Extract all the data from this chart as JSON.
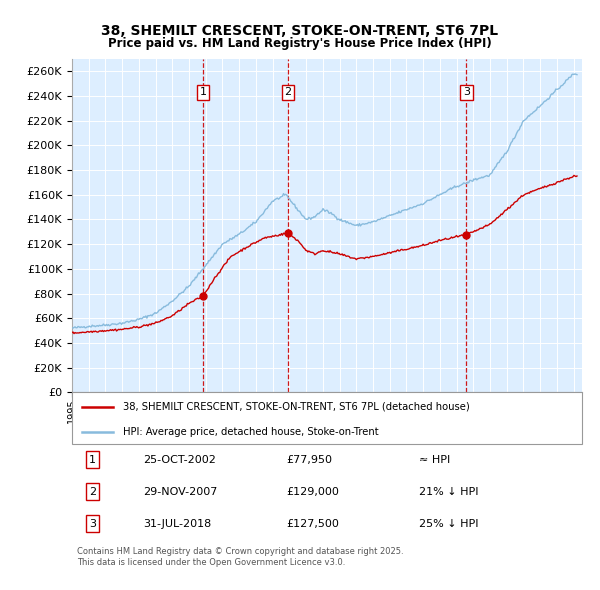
{
  "title": "38, SHEMILT CRESCENT, STOKE-ON-TRENT, ST6 7PL",
  "subtitle": "Price paid vs. HM Land Registry's House Price Index (HPI)",
  "legend_property": "38, SHEMILT CRESCENT, STOKE-ON-TRENT, ST6 7PL (detached house)",
  "legend_hpi": "HPI: Average price, detached house, Stoke-on-Trent",
  "property_color": "#cc0000",
  "hpi_color": "#88bbdd",
  "vline_color": "#cc0000",
  "plot_bg": "#ddeeff",
  "ylim": [
    0,
    270000
  ],
  "yticks": [
    0,
    20000,
    40000,
    60000,
    80000,
    100000,
    120000,
    140000,
    160000,
    180000,
    200000,
    220000,
    240000,
    260000
  ],
  "xmin": 1995,
  "xmax": 2025.5,
  "sale_years": [
    2002.8333,
    2007.9167,
    2018.5833
  ],
  "sale_prices": [
    77950,
    129000,
    127500
  ],
  "sale_nums": [
    "1",
    "2",
    "3"
  ],
  "table_rows": [
    [
      "1",
      "25-OCT-2002",
      "£77,950",
      "≈ HPI"
    ],
    [
      "2",
      "29-NOV-2007",
      "£129,000",
      "21% ↓ HPI"
    ],
    [
      "3",
      "31-JUL-2018",
      "£127,500",
      "25% ↓ HPI"
    ]
  ],
  "footer": "Contains HM Land Registry data © Crown copyright and database right 2025.\nThis data is licensed under the Open Government Licence v3.0.",
  "hpi_key_points": [
    [
      1995.0,
      52000
    ],
    [
      1996.0,
      53500
    ],
    [
      1997.0,
      54500
    ],
    [
      1998.0,
      56000
    ],
    [
      1999.0,
      59000
    ],
    [
      2000.0,
      64000
    ],
    [
      2001.0,
      74000
    ],
    [
      2002.0,
      86000
    ],
    [
      2003.0,
      103000
    ],
    [
      2004.0,
      120000
    ],
    [
      2005.0,
      128000
    ],
    [
      2006.0,
      138000
    ],
    [
      2007.0,
      155000
    ],
    [
      2007.8,
      160000
    ],
    [
      2008.5,
      148000
    ],
    [
      2009.0,
      140000
    ],
    [
      2009.5,
      142000
    ],
    [
      2010.0,
      148000
    ],
    [
      2010.5,
      145000
    ],
    [
      2011.0,
      140000
    ],
    [
      2012.0,
      135000
    ],
    [
      2013.0,
      138000
    ],
    [
      2014.0,
      143000
    ],
    [
      2015.0,
      148000
    ],
    [
      2016.0,
      153000
    ],
    [
      2017.0,
      160000
    ],
    [
      2018.0,
      167000
    ],
    [
      2018.5,
      169000
    ],
    [
      2019.0,
      172000
    ],
    [
      2019.5,
      174000
    ],
    [
      2020.0,
      176000
    ],
    [
      2021.0,
      195000
    ],
    [
      2022.0,
      220000
    ],
    [
      2023.0,
      232000
    ],
    [
      2024.0,
      245000
    ],
    [
      2025.0,
      258000
    ]
  ],
  "prop_key_points": [
    [
      1995.0,
      48000
    ],
    [
      1996.0,
      49000
    ],
    [
      1997.0,
      50000
    ],
    [
      1998.0,
      51000
    ],
    [
      1999.0,
      53000
    ],
    [
      2000.0,
      56000
    ],
    [
      2001.0,
      62000
    ],
    [
      2002.0,
      72000
    ],
    [
      2002.8333,
      77950
    ],
    [
      2003.5,
      92000
    ],
    [
      2004.5,
      110000
    ],
    [
      2005.5,
      118000
    ],
    [
      2006.5,
      125000
    ],
    [
      2007.9167,
      129000
    ],
    [
      2008.5,
      123000
    ],
    [
      2009.0,
      115000
    ],
    [
      2009.5,
      112000
    ],
    [
      2010.0,
      115000
    ],
    [
      2011.0,
      112000
    ],
    [
      2012.0,
      108000
    ],
    [
      2013.0,
      110000
    ],
    [
      2014.0,
      113000
    ],
    [
      2015.0,
      116000
    ],
    [
      2016.0,
      119000
    ],
    [
      2017.0,
      123000
    ],
    [
      2018.0,
      126000
    ],
    [
      2018.5833,
      127500
    ],
    [
      2019.0,
      130000
    ],
    [
      2019.5,
      133000
    ],
    [
      2020.0,
      136000
    ],
    [
      2021.0,
      148000
    ],
    [
      2022.0,
      160000
    ],
    [
      2023.0,
      165000
    ],
    [
      2024.0,
      170000
    ],
    [
      2025.0,
      175000
    ]
  ]
}
